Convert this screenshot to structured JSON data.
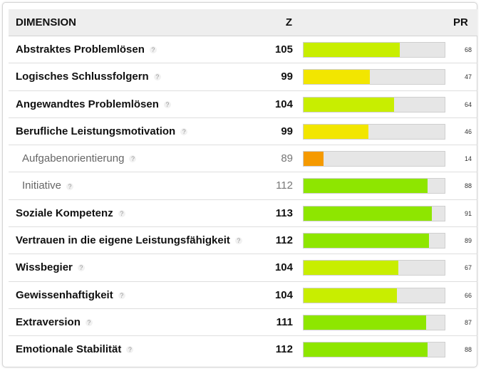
{
  "header": {
    "dimension": "DIMENSION",
    "z": "Z",
    "pr": "PR"
  },
  "help_glyph": "?",
  "colors": {
    "green": "#8ee600",
    "lime": "#c8ee00",
    "yellow": "#f2e600",
    "orange": "#f59a00",
    "bar_bg": "#e6e6e6"
  },
  "rows": [
    {
      "label": "Abstraktes Problemlösen",
      "z": 105,
      "pr": 68,
      "sub": false,
      "color": "#c8ee00"
    },
    {
      "label": "Logisches Schlussfolgern",
      "z": 99,
      "pr": 47,
      "sub": false,
      "color": "#f2e600"
    },
    {
      "label": "Angewandtes Problemlösen",
      "z": 104,
      "pr": 64,
      "sub": false,
      "color": "#c8ee00"
    },
    {
      "label": "Berufliche Leistungsmotivation",
      "z": 99,
      "pr": 46,
      "sub": false,
      "color": "#f2e600"
    },
    {
      "label": "Aufgabenorientierung",
      "z": 89,
      "pr": 14,
      "sub": true,
      "color": "#f59a00"
    },
    {
      "label": "Initiative",
      "z": 112,
      "pr": 88,
      "sub": true,
      "color": "#8ee600"
    },
    {
      "label": "Soziale Kompetenz",
      "z": 113,
      "pr": 91,
      "sub": false,
      "color": "#8ee600"
    },
    {
      "label": "Vertrauen in die eigene Leistungsfähigkeit",
      "z": 112,
      "pr": 89,
      "sub": false,
      "color": "#8ee600"
    },
    {
      "label": "Wissbegier",
      "z": 104,
      "pr": 67,
      "sub": false,
      "color": "#c8ee00"
    },
    {
      "label": "Gewissenhaftigkeit",
      "z": 104,
      "pr": 66,
      "sub": false,
      "color": "#c8ee00"
    },
    {
      "label": "Extraversion",
      "z": 111,
      "pr": 87,
      "sub": false,
      "color": "#8ee600"
    },
    {
      "label": "Emotionale Stabilität",
      "z": 112,
      "pr": 88,
      "sub": false,
      "color": "#8ee600"
    }
  ]
}
